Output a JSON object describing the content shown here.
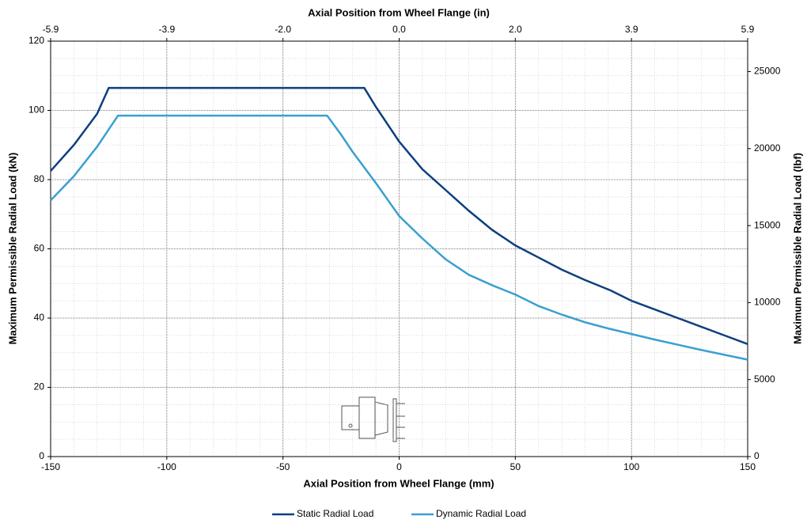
{
  "chart_data": {
    "type": "line",
    "x_label": "Axial Position from Wheel Flange (mm)",
    "x2_label": "Axial Position from Wheel Flange (in)",
    "y_label": "Maximum Permissible Radial Load (kN)",
    "y2_label": "Maximum Permissible Radial Load (lbf)",
    "xlim": [
      -150,
      150
    ],
    "xticks": [
      -150,
      -100,
      -50,
      0,
      50,
      100,
      150
    ],
    "x2lim": [
      -5.9055,
      5.9055
    ],
    "x2ticks": [
      {
        "value": -5.9055,
        "label": "-5.9"
      },
      {
        "value": -3.937,
        "label": "-3.9"
      },
      {
        "value": -1.9685,
        "label": "-2.0"
      },
      {
        "value": 0,
        "label": "0.0"
      },
      {
        "value": 1.9685,
        "label": "2.0"
      },
      {
        "value": 3.937,
        "label": "3.9"
      },
      {
        "value": 5.9055,
        "label": "5.9"
      }
    ],
    "ylim": [
      0,
      120
    ],
    "yticks": [
      0,
      20,
      40,
      60,
      80,
      100,
      120
    ],
    "y2lim": [
      0,
      26977
    ],
    "y2ticks": [
      0,
      5000,
      10000,
      15000,
      20000,
      25000
    ],
    "grid": true,
    "x_minor_divisions": 5,
    "y_minor_divisions": 4,
    "legend": "bottom",
    "series": [
      {
        "name": "Static Radial Load",
        "color": "#0d3f7f",
        "x": [
          -150,
          -140,
          -130,
          -125,
          -15,
          -10,
          0,
          10,
          20,
          30,
          40,
          50,
          60,
          70,
          80,
          91,
          100,
          110,
          120,
          130,
          140,
          150
        ],
        "values": [
          82.5,
          90,
          99,
          106.5,
          106.5,
          101,
          91,
          83,
          77,
          71,
          65.5,
          61,
          57.5,
          54,
          51,
          48,
          45,
          42.5,
          40,
          37.5,
          35,
          32.5
        ]
      },
      {
        "name": "Dynamic Radial Load",
        "color": "#3aa0d0",
        "x": [
          -150,
          -140,
          -130,
          -121,
          -31,
          -25,
          -20,
          -10,
          0,
          10,
          20,
          30,
          40,
          50,
          60,
          70,
          80,
          90,
          100,
          110,
          120,
          130,
          140,
          150
        ],
        "values": [
          74,
          81,
          89.5,
          98.5,
          98.5,
          93,
          88,
          79,
          69.5,
          63,
          57,
          52.5,
          49.5,
          46.8,
          43.5,
          41,
          38.8,
          37,
          35.4,
          33.8,
          32.3,
          30.8,
          29.4,
          28
        ]
      }
    ]
  }
}
